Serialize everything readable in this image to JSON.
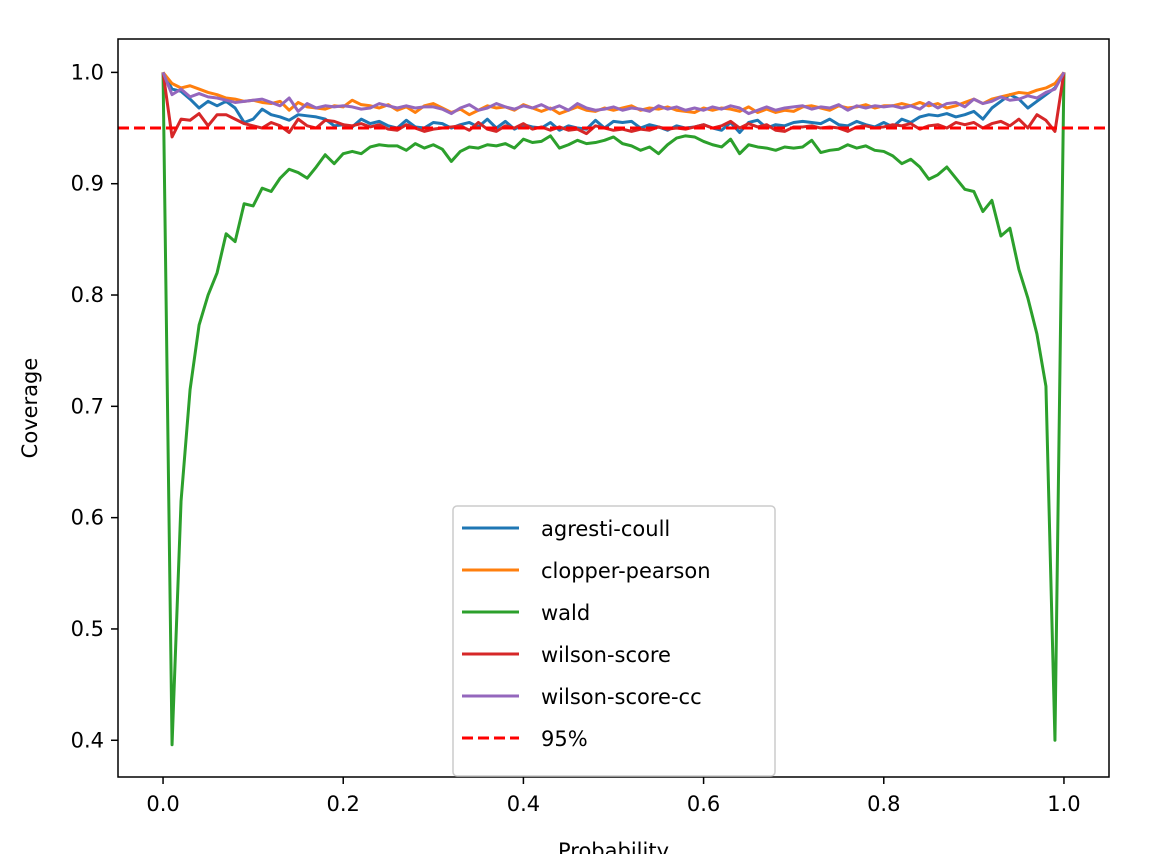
{
  "chart_data": {
    "type": "line",
    "title": "",
    "xlabel": "Probability",
    "ylabel": "Coverage",
    "xlim": [
      -0.05,
      1.05
    ],
    "ylim": [
      0.367,
      1.03
    ],
    "x_ticks": [
      0.0,
      0.2,
      0.4,
      0.6,
      0.8,
      1.0
    ],
    "x_tick_labels": [
      "0.0",
      "0.2",
      "0.4",
      "0.6",
      "0.8",
      "1.0"
    ],
    "y_ticks": [
      0.4,
      0.5,
      0.6,
      0.7,
      0.8,
      0.9,
      1.0
    ],
    "y_tick_labels": [
      "0.4",
      "0.5",
      "0.6",
      "0.7",
      "0.8",
      "0.9",
      "1.0"
    ],
    "grid": false,
    "legend_position": "lower-center",
    "x": [
      0.0,
      0.01,
      0.02,
      0.03,
      0.04,
      0.05,
      0.06,
      0.07,
      0.08,
      0.09,
      0.1,
      0.11,
      0.12,
      0.13,
      0.14,
      0.15,
      0.16,
      0.17,
      0.18,
      0.19,
      0.2,
      0.21,
      0.22,
      0.23,
      0.24,
      0.25,
      0.26,
      0.27,
      0.28,
      0.29,
      0.3,
      0.31,
      0.32,
      0.33,
      0.34,
      0.35,
      0.36,
      0.37,
      0.38,
      0.39,
      0.4,
      0.41,
      0.42,
      0.43,
      0.44,
      0.45,
      0.46,
      0.47,
      0.48,
      0.49,
      0.5,
      0.51,
      0.52,
      0.53,
      0.54,
      0.55,
      0.56,
      0.57,
      0.58,
      0.59,
      0.6,
      0.61,
      0.62,
      0.63,
      0.64,
      0.65,
      0.66,
      0.67,
      0.68,
      0.69,
      0.7,
      0.71,
      0.72,
      0.73,
      0.74,
      0.75,
      0.76,
      0.77,
      0.78,
      0.79,
      0.8,
      0.81,
      0.82,
      0.83,
      0.84,
      0.85,
      0.86,
      0.87,
      0.88,
      0.89,
      0.9,
      0.91,
      0.92,
      0.93,
      0.94,
      0.95,
      0.96,
      0.97,
      0.98,
      0.99,
      1.0
    ],
    "series": [
      {
        "name": "agresti-coull",
        "color": "#1f77b4",
        "dashed": false,
        "values": [
          1.0,
          0.985,
          0.983,
          0.976,
          0.968,
          0.974,
          0.97,
          0.974,
          0.968,
          0.955,
          0.958,
          0.967,
          0.962,
          0.96,
          0.957,
          0.962,
          0.961,
          0.96,
          0.958,
          0.952,
          0.953,
          0.951,
          0.958,
          0.954,
          0.956,
          0.952,
          0.95,
          0.957,
          0.951,
          0.95,
          0.955,
          0.954,
          0.95,
          0.953,
          0.955,
          0.951,
          0.958,
          0.95,
          0.956,
          0.949,
          0.953,
          0.951,
          0.95,
          0.955,
          0.948,
          0.952,
          0.95,
          0.949,
          0.957,
          0.95,
          0.956,
          0.955,
          0.956,
          0.95,
          0.953,
          0.951,
          0.948,
          0.952,
          0.95,
          0.951,
          0.953,
          0.95,
          0.948,
          0.955,
          0.946,
          0.955,
          0.957,
          0.95,
          0.953,
          0.952,
          0.955,
          0.956,
          0.955,
          0.954,
          0.958,
          0.953,
          0.952,
          0.956,
          0.953,
          0.951,
          0.955,
          0.951,
          0.958,
          0.955,
          0.96,
          0.962,
          0.961,
          0.963,
          0.96,
          0.962,
          0.965,
          0.958,
          0.968,
          0.974,
          0.98,
          0.976,
          0.968,
          0.974,
          0.98,
          0.986,
          1.0
        ]
      },
      {
        "name": "clopper-pearson",
        "color": "#ff7f0e",
        "dashed": false,
        "values": [
          1.0,
          0.99,
          0.986,
          0.988,
          0.985,
          0.982,
          0.98,
          0.977,
          0.976,
          0.974,
          0.975,
          0.973,
          0.972,
          0.974,
          0.966,
          0.973,
          0.969,
          0.968,
          0.967,
          0.97,
          0.969,
          0.975,
          0.971,
          0.97,
          0.968,
          0.971,
          0.966,
          0.969,
          0.964,
          0.97,
          0.972,
          0.968,
          0.964,
          0.967,
          0.962,
          0.966,
          0.97,
          0.968,
          0.969,
          0.966,
          0.971,
          0.968,
          0.965,
          0.968,
          0.963,
          0.966,
          0.969,
          0.966,
          0.965,
          0.968,
          0.966,
          0.968,
          0.97,
          0.966,
          0.968,
          0.967,
          0.969,
          0.966,
          0.965,
          0.964,
          0.968,
          0.966,
          0.968,
          0.967,
          0.965,
          0.969,
          0.964,
          0.967,
          0.964,
          0.966,
          0.965,
          0.969,
          0.97,
          0.968,
          0.966,
          0.97,
          0.968,
          0.969,
          0.971,
          0.968,
          0.97,
          0.97,
          0.972,
          0.97,
          0.973,
          0.97,
          0.972,
          0.968,
          0.97,
          0.973,
          0.976,
          0.972,
          0.976,
          0.978,
          0.98,
          0.982,
          0.981,
          0.984,
          0.986,
          0.99,
          1.0
        ]
      },
      {
        "name": "wald",
        "color": "#2ca02c",
        "dashed": false,
        "values": [
          1.0,
          0.396,
          0.615,
          0.715,
          0.773,
          0.8,
          0.82,
          0.855,
          0.848,
          0.882,
          0.88,
          0.896,
          0.893,
          0.905,
          0.913,
          0.91,
          0.905,
          0.915,
          0.926,
          0.918,
          0.927,
          0.929,
          0.927,
          0.933,
          0.935,
          0.934,
          0.934,
          0.93,
          0.936,
          0.932,
          0.935,
          0.931,
          0.92,
          0.929,
          0.933,
          0.932,
          0.935,
          0.934,
          0.936,
          0.932,
          0.94,
          0.937,
          0.938,
          0.943,
          0.932,
          0.935,
          0.939,
          0.936,
          0.937,
          0.939,
          0.942,
          0.936,
          0.934,
          0.93,
          0.933,
          0.927,
          0.935,
          0.941,
          0.943,
          0.942,
          0.938,
          0.935,
          0.933,
          0.94,
          0.927,
          0.935,
          0.933,
          0.932,
          0.93,
          0.933,
          0.932,
          0.933,
          0.939,
          0.928,
          0.93,
          0.931,
          0.935,
          0.932,
          0.934,
          0.93,
          0.929,
          0.925,
          0.918,
          0.922,
          0.915,
          0.904,
          0.908,
          0.915,
          0.905,
          0.895,
          0.893,
          0.875,
          0.885,
          0.853,
          0.86,
          0.823,
          0.797,
          0.765,
          0.718,
          0.4,
          1.0
        ]
      },
      {
        "name": "wilson-score",
        "color": "#d62728",
        "dashed": false,
        "values": [
          1.0,
          0.942,
          0.958,
          0.957,
          0.963,
          0.952,
          0.962,
          0.962,
          0.958,
          0.954,
          0.952,
          0.95,
          0.955,
          0.952,
          0.946,
          0.958,
          0.952,
          0.95,
          0.957,
          0.956,
          0.953,
          0.952,
          0.954,
          0.951,
          0.953,
          0.949,
          0.948,
          0.953,
          0.95,
          0.947,
          0.949,
          0.95,
          0.951,
          0.952,
          0.948,
          0.955,
          0.949,
          0.947,
          0.952,
          0.95,
          0.954,
          0.949,
          0.951,
          0.948,
          0.951,
          0.948,
          0.949,
          0.945,
          0.952,
          0.95,
          0.948,
          0.949,
          0.947,
          0.949,
          0.948,
          0.951,
          0.949,
          0.95,
          0.949,
          0.951,
          0.953,
          0.95,
          0.952,
          0.956,
          0.95,
          0.954,
          0.951,
          0.953,
          0.948,
          0.947,
          0.951,
          0.951,
          0.952,
          0.95,
          0.951,
          0.95,
          0.947,
          0.951,
          0.952,
          0.95,
          0.951,
          0.953,
          0.952,
          0.954,
          0.949,
          0.952,
          0.953,
          0.95,
          0.955,
          0.953,
          0.955,
          0.95,
          0.954,
          0.956,
          0.952,
          0.958,
          0.95,
          0.962,
          0.957,
          0.947,
          1.0
        ]
      },
      {
        "name": "wilson-score-cc",
        "color": "#9467bd",
        "dashed": false,
        "values": [
          1.0,
          0.98,
          0.985,
          0.978,
          0.981,
          0.978,
          0.977,
          0.975,
          0.973,
          0.974,
          0.975,
          0.976,
          0.973,
          0.97,
          0.977,
          0.965,
          0.972,
          0.968,
          0.97,
          0.969,
          0.97,
          0.969,
          0.967,
          0.968,
          0.972,
          0.97,
          0.968,
          0.97,
          0.968,
          0.969,
          0.969,
          0.967,
          0.963,
          0.968,
          0.971,
          0.966,
          0.968,
          0.972,
          0.969,
          0.967,
          0.97,
          0.968,
          0.971,
          0.967,
          0.97,
          0.966,
          0.972,
          0.968,
          0.966,
          0.967,
          0.969,
          0.966,
          0.968,
          0.967,
          0.965,
          0.97,
          0.967,
          0.969,
          0.966,
          0.968,
          0.966,
          0.969,
          0.967,
          0.97,
          0.968,
          0.963,
          0.966,
          0.969,
          0.966,
          0.968,
          0.969,
          0.97,
          0.967,
          0.969,
          0.968,
          0.971,
          0.966,
          0.97,
          0.968,
          0.97,
          0.969,
          0.97,
          0.968,
          0.97,
          0.967,
          0.973,
          0.968,
          0.972,
          0.973,
          0.969,
          0.976,
          0.972,
          0.974,
          0.978,
          0.975,
          0.976,
          0.979,
          0.977,
          0.982,
          0.985,
          1.0
        ]
      },
      {
        "name": "95%",
        "color": "#ff0000",
        "dashed": true,
        "hline": 0.95
      }
    ]
  }
}
